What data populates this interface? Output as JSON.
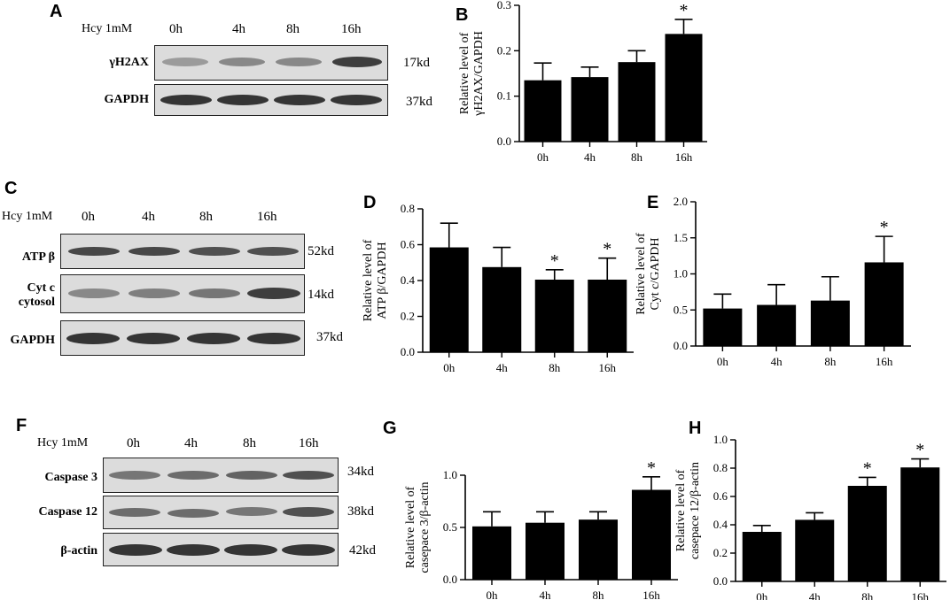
{
  "panels": {
    "A": {
      "letter": "A",
      "treatment": "Hcy 1mM",
      "times": [
        "0h",
        "4h",
        "8h",
        "16h"
      ],
      "rows": [
        {
          "label": "γH2AX",
          "kd": "17kd",
          "intensity": [
            0.35,
            0.45,
            0.45,
            0.85
          ]
        },
        {
          "label": "GAPDH",
          "kd": "37kd",
          "intensity": [
            0.9,
            0.9,
            0.9,
            0.9
          ]
        }
      ]
    },
    "C": {
      "letter": "C",
      "treatment": "Hcy 1mM",
      "times": [
        "0h",
        "4h",
        "8h",
        "16h"
      ],
      "rows": [
        {
          "label": "ATP β",
          "kd": "52kd",
          "intensity": [
            0.8,
            0.8,
            0.75,
            0.75
          ]
        },
        {
          "label": "Cyt c\ncytosol",
          "kd": "14kd",
          "intensity": [
            0.45,
            0.5,
            0.55,
            0.85
          ]
        },
        {
          "label": "GAPDH",
          "kd": "37kd",
          "intensity": [
            0.9,
            0.9,
            0.9,
            0.9
          ]
        }
      ]
    },
    "F": {
      "letter": "F",
      "treatment": "Hcy 1mM",
      "times": [
        "0h",
        "4h",
        "8h",
        "16h"
      ],
      "rows": [
        {
          "label": "Caspase 3",
          "kd": "34kd",
          "intensity": [
            0.55,
            0.6,
            0.65,
            0.75
          ]
        },
        {
          "label": "Caspase 12",
          "kd": "38kd",
          "intensity": [
            0.6,
            0.6,
            0.55,
            0.75
          ]
        },
        {
          "label": "β-actin",
          "kd": "42kd",
          "intensity": [
            0.9,
            0.9,
            0.9,
            0.9
          ]
        }
      ]
    }
  },
  "chart_data": [
    {
      "panel": "B",
      "type": "bar",
      "categories": [
        "0h",
        "4h",
        "8h",
        "16h"
      ],
      "values": [
        0.135,
        0.142,
        0.175,
        0.237
      ],
      "errors": [
        0.038,
        0.022,
        0.025,
        0.032
      ],
      "significant": [
        false,
        false,
        false,
        true
      ],
      "ylabel": "Relative level of\nγH2AX/GAPDH",
      "ylim": [
        0,
        0.3
      ],
      "yticks": [
        "0.0",
        "0.1",
        "0.2",
        "0.3"
      ],
      "sig_marker": "*"
    },
    {
      "panel": "D",
      "type": "bar",
      "categories": [
        "0h",
        "4h",
        "8h",
        "16h"
      ],
      "values": [
        0.585,
        0.475,
        0.405,
        0.405
      ],
      "errors": [
        0.135,
        0.11,
        0.055,
        0.12
      ],
      "significant": [
        false,
        false,
        true,
        true
      ],
      "ylabel": "Relative level of\nATP β/GAPDH",
      "ylim": [
        0,
        0.8
      ],
      "yticks": [
        "0.0",
        "0.2",
        "0.4",
        "0.6",
        "0.8"
      ],
      "sig_marker": "*"
    },
    {
      "panel": "E",
      "type": "bar",
      "categories": [
        "0h",
        "4h",
        "8h",
        "16h"
      ],
      "values": [
        0.52,
        0.57,
        0.63,
        1.16
      ],
      "errors": [
        0.2,
        0.28,
        0.33,
        0.36
      ],
      "significant": [
        false,
        false,
        false,
        true
      ],
      "ylabel": "Relative level of\nCyt c/GAPDH",
      "ylim": [
        0,
        2.0
      ],
      "yticks": [
        "0.0",
        "0.5",
        "1.0",
        "1.5",
        "2.0"
      ],
      "sig_marker": "*"
    },
    {
      "panel": "G",
      "type": "bar",
      "categories": [
        "0h",
        "4h",
        "8h",
        "16h"
      ],
      "values": [
        0.51,
        0.545,
        0.575,
        0.86
      ],
      "errors": [
        0.14,
        0.105,
        0.075,
        0.125
      ],
      "significant": [
        false,
        false,
        false,
        true
      ],
      "ylabel": "Relative level of\ncasepace 3/β-actin",
      "ylim": [
        0,
        1.0
      ],
      "yticks": [
        "0.0",
        "0.5",
        "1.0"
      ],
      "sig_marker": "*"
    },
    {
      "panel": "H",
      "type": "bar",
      "categories": [
        "0h",
        "4h",
        "8h",
        "16h"
      ],
      "values": [
        0.35,
        0.435,
        0.675,
        0.805
      ],
      "errors": [
        0.045,
        0.05,
        0.06,
        0.06
      ],
      "significant": [
        false,
        false,
        true,
        true
      ],
      "ylabel": "Relative level of\ncasepace 12/β-actin",
      "ylim": [
        0,
        1.0
      ],
      "yticks": [
        "0.0",
        "0.2",
        "0.4",
        "0.6",
        "0.8",
        "1.0"
      ],
      "sig_marker": "*"
    }
  ],
  "chart_letters": {
    "B": "B",
    "D": "D",
    "E": "E",
    "G": "G",
    "H": "H"
  }
}
